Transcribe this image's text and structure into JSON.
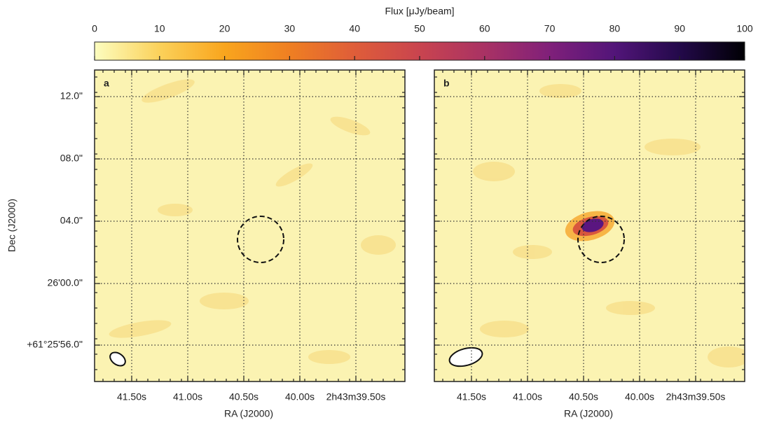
{
  "chart_data": {
    "type": "heatmap",
    "colorbar": {
      "label": "Flux [μJy/beam]",
      "lim": [
        0,
        100
      ],
      "ticks": [
        0,
        10,
        20,
        30,
        40,
        50,
        60,
        70,
        80,
        90,
        100
      ],
      "colormap": [
        "#fcfdbf",
        "#fbd15a",
        "#f9a51d",
        "#ef7f22",
        "#df5d39",
        "#c9444f",
        "#a93264",
        "#80207a",
        "#521579",
        "#23094a",
        "#000004"
      ]
    },
    "panels": [
      {
        "label": "a"
      },
      {
        "label": "b"
      }
    ],
    "x_label": "RA (J2000)",
    "y_label": "Dec (J2000)",
    "xtick_labels": [
      "41.50s",
      "41.00s",
      "40.50s",
      "40.00s",
      "2h43m39.50s"
    ],
    "ytick_labels": [
      "12.0\"",
      "08.0\"",
      "04.0\"",
      "26'00.0\"",
      "+61°25'56.0\""
    ]
  }
}
